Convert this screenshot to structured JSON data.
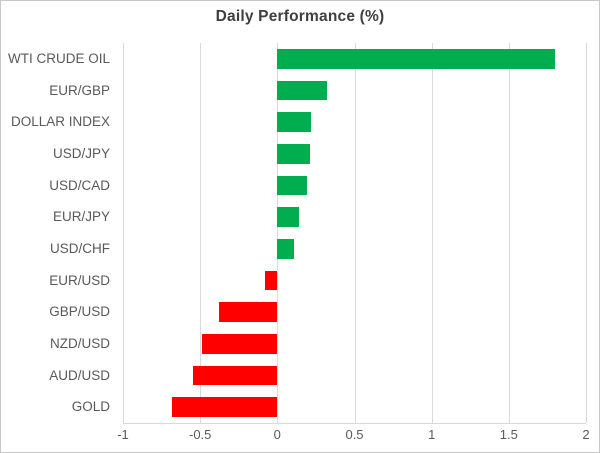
{
  "chart_data": {
    "type": "bar",
    "orientation": "horizontal",
    "title": "Daily Performance (%)",
    "categories": [
      "WTI CRUDE OIL",
      "EUR/GBP",
      "DOLLAR INDEX",
      "USD/JPY",
      "USD/CAD",
      "EUR/JPY",
      "USD/CHF",
      "EUR/USD",
      "GBP/USD",
      "NZD/USD",
      "AUD/USD",
      "GOLD"
    ],
    "values": [
      1.8,
      0.32,
      0.22,
      0.21,
      0.19,
      0.14,
      0.11,
      -0.08,
      -0.38,
      -0.49,
      -0.55,
      -0.68
    ],
    "xlabel": "",
    "ylabel": "",
    "xlim": [
      -1,
      2
    ],
    "xticks": [
      -1,
      -0.5,
      0,
      0.5,
      1,
      1.5,
      2
    ],
    "xtick_labels": [
      "-1",
      "-0.5",
      "0",
      "0.5",
      "1",
      "1.5",
      "2"
    ],
    "grid": true,
    "legend": false,
    "colors": {
      "positive_bar": "#00AE50",
      "negative_bar": "#FF0000",
      "gridline": "#D9D9D9",
      "axis_text": "#595959",
      "title_text": "#3F3F3F"
    }
  }
}
